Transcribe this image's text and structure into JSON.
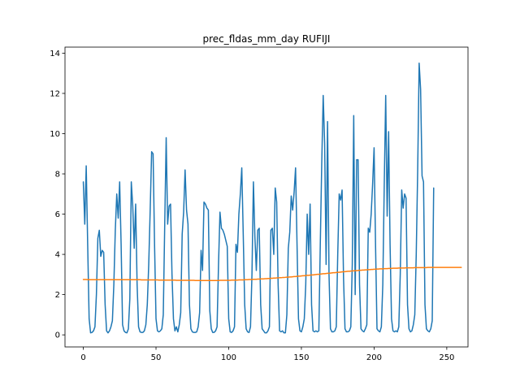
{
  "chart_data": {
    "type": "line",
    "title": "prec_fldas_mm_day RUFIJI",
    "xlabel": "",
    "ylabel": "",
    "xlim": [
      -12.6,
      264.6
    ],
    "ylim": [
      -0.6,
      14.3
    ],
    "x_ticks": [
      0,
      50,
      100,
      150,
      200,
      250
    ],
    "y_ticks": [
      0,
      2,
      4,
      6,
      8,
      10,
      12,
      14
    ],
    "grid": false,
    "series": [
      {
        "color": "#1f77b4",
        "values": [
          7.6,
          5.5,
          8.4,
          4.5,
          0.8,
          0.1,
          0.12,
          0.2,
          0.4,
          2,
          4.8,
          5.2,
          3.9,
          4.2,
          4.1,
          1.5,
          0.2,
          0.1,
          0.2,
          0.4,
          0.7,
          2.5,
          5.2,
          7,
          5.8,
          7.6,
          4.5,
          0.5,
          0.2,
          0.12,
          0.1,
          0.3,
          1.8,
          7.6,
          6.4,
          4.3,
          6.5,
          2.5,
          0.4,
          0.15,
          0.12,
          0.12,
          0.2,
          0.5,
          1.5,
          3.5,
          6.2,
          9.1,
          9,
          4.5,
          0.8,
          0.2,
          0.15,
          0.2,
          0.3,
          1,
          5.5,
          9.8,
          5.5,
          6.4,
          6.5,
          3,
          0.8,
          0.2,
          0.4,
          0.15,
          0.5,
          1.1,
          5,
          6.1,
          8.2,
          6.2,
          5.5,
          1.5,
          0.3,
          0.15,
          0.12,
          0.12,
          0.15,
          0.4,
          1.1,
          4.2,
          3.2,
          6.6,
          6.5,
          6.3,
          6.2,
          1.2,
          0.3,
          0.12,
          0.12,
          0.2,
          0.4,
          3.5,
          6.1,
          5.3,
          5.2,
          5,
          4.7,
          4.4,
          0.8,
          0.15,
          0.12,
          0.2,
          0.4,
          4.5,
          4.1,
          6,
          7,
          8.3,
          5,
          1.5,
          0.3,
          0.15,
          0.12,
          0.4,
          3,
          7.6,
          4.9,
          3.2,
          5.2,
          5.3,
          1.5,
          0.3,
          0.2,
          0.1,
          0.1,
          0.2,
          0.4,
          5.2,
          5.3,
          4,
          7.3,
          6.6,
          2.5,
          0.2,
          0.15,
          0.2,
          0.1,
          0.1,
          1,
          4.3,
          5.1,
          6.9,
          6.2,
          7.1,
          8.3,
          4.5,
          0.8,
          0.2,
          0.15,
          0.4,
          0.8,
          2.5,
          6,
          4,
          6.5,
          1.5,
          0.2,
          0.15,
          0.2,
          0.15,
          0.2,
          4.5,
          8.5,
          11.9,
          9.5,
          3.5,
          10.6,
          3,
          0.3,
          0.15,
          0.15,
          0.2,
          0.4,
          4,
          7,
          6.7,
          7.2,
          2.8,
          0.3,
          0.15,
          0.15,
          0.2,
          0.4,
          3.5,
          10.9,
          2,
          8.7,
          8.7,
          2.5,
          0.3,
          0.2,
          0.15,
          0.3,
          0.5,
          5.3,
          5.1,
          6,
          7.5,
          9.3,
          4.5,
          0.3,
          0.2,
          0.15,
          0.4,
          2.5,
          7.5,
          11.9,
          5.9,
          10.1,
          4.5,
          0.8,
          0.2,
          0.15,
          0.2,
          0.15,
          0.4,
          3,
          7.2,
          6.3,
          7,
          6.8,
          1.5,
          0.3,
          0.15,
          0.2,
          0.5,
          1,
          4,
          8.2,
          13.5,
          12.2,
          7.9,
          7.6,
          1.5,
          0.3,
          0.2,
          0.15,
          0.3,
          0.7,
          7.3
        ]
      },
      {
        "color": "#ff7f0e",
        "values": [
          2.75,
          2.75,
          2.75,
          2.74,
          2.74,
          2.74,
          2.74,
          2.74,
          2.74,
          2.74,
          2.74,
          2.74,
          2.74,
          2.74,
          2.74,
          2.74,
          2.74,
          2.74,
          2.74,
          2.74,
          2.74,
          2.74,
          2.74,
          2.74,
          2.74,
          2.74,
          2.74,
          2.74,
          2.74,
          2.74,
          2.74,
          2.74,
          2.74,
          2.74,
          2.74,
          2.74,
          2.74,
          2.74,
          2.74,
          2.74,
          2.73,
          2.73,
          2.73,
          2.73,
          2.73,
          2.73,
          2.73,
          2.73,
          2.73,
          2.73,
          2.73,
          2.73,
          2.72,
          2.72,
          2.72,
          2.72,
          2.72,
          2.72,
          2.72,
          2.72,
          2.72,
          2.72,
          2.72,
          2.72,
          2.71,
          2.71,
          2.71,
          2.71,
          2.71,
          2.71,
          2.71,
          2.71,
          2.71,
          2.71,
          2.71,
          2.71,
          2.71,
          2.7,
          2.7,
          2.7,
          2.7,
          2.7,
          2.7,
          2.7,
          2.7,
          2.7,
          2.7,
          2.7,
          2.7,
          2.7,
          2.7,
          2.7,
          2.7,
          2.7,
          2.71,
          2.71,
          2.71,
          2.71,
          2.71,
          2.71,
          2.71,
          2.71,
          2.72,
          2.72,
          2.72,
          2.72,
          2.72,
          2.73,
          2.73,
          2.73,
          2.73,
          2.74,
          2.74,
          2.74,
          2.75,
          2.75,
          2.75,
          2.76,
          2.76,
          2.76,
          2.77,
          2.77,
          2.78,
          2.78,
          2.78,
          2.79,
          2.79,
          2.8,
          2.8,
          2.81,
          2.81,
          2.82,
          2.82,
          2.83,
          2.83,
          2.84,
          2.84,
          2.85,
          2.85,
          2.86,
          2.87,
          2.87,
          2.88,
          2.88,
          2.89,
          2.9,
          2.9,
          2.91,
          2.92,
          2.92,
          2.93,
          2.94,
          2.94,
          2.95,
          2.96,
          2.96,
          2.97,
          2.98,
          2.98,
          2.99,
          3,
          3.01,
          3.01,
          3.02,
          3.03,
          3.04,
          3.04,
          3.05,
          3.06,
          3.06,
          3.07,
          3.08,
          3.09,
          3.09,
          3.1,
          3.11,
          3.11,
          3.12,
          3.13,
          3.14,
          3.14,
          3.15,
          3.16,
          3.16,
          3.17,
          3.18,
          3.18,
          3.19,
          3.19,
          3.2,
          3.21,
          3.21,
          3.22,
          3.22,
          3.23,
          3.23,
          3.24,
          3.24,
          3.25,
          3.25,
          3.26,
          3.26,
          3.27,
          3.27,
          3.28,
          3.28,
          3.28,
          3.29,
          3.29,
          3.29,
          3.3,
          3.3,
          3.3,
          3.31,
          3.31,
          3.31,
          3.31,
          3.32,
          3.32,
          3.32,
          3.32,
          3.32,
          3.33,
          3.33,
          3.33,
          3.33,
          3.33,
          3.33,
          3.34,
          3.34,
          3.34,
          3.34,
          3.34,
          3.34,
          3.34,
          3.34,
          3.34,
          3.35,
          3.35,
          3.35,
          3.35,
          3.35,
          3.35,
          3.35,
          3.35,
          3.35,
          3.35,
          3.35,
          3.35,
          3.35,
          3.35,
          3.35,
          3.35,
          3.35,
          3.35,
          3.35,
          3.35,
          3.35,
          3.35,
          3.35,
          3.35
        ]
      }
    ]
  }
}
